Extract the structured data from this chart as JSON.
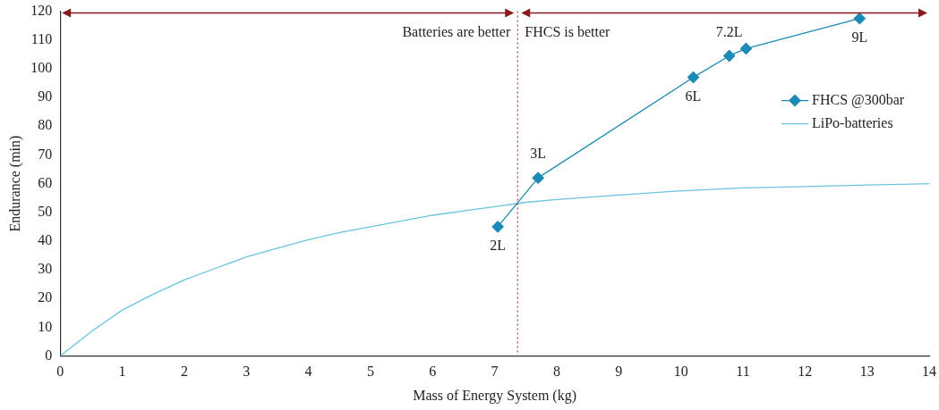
{
  "chart_data": {
    "type": "line",
    "xlabel": "Mass of Energy System (kg)",
    "ylabel": "Endurance (min)",
    "xlim": [
      0,
      14
    ],
    "xticks": [
      0,
      1,
      2,
      3,
      4,
      5,
      6,
      7,
      8,
      9,
      10,
      11,
      12,
      13,
      14
    ],
    "ylim": [
      0,
      120
    ],
    "yticks": [
      0,
      10,
      20,
      30,
      40,
      50,
      60,
      70,
      80,
      90,
      100,
      110,
      120
    ],
    "grid": false,
    "legend": "right",
    "series": [
      {
        "name": "FHCS @300bar",
        "color": "#1b8bb5",
        "marker": "diamond",
        "x": [
          7.05,
          7.7,
          10.2,
          10.78,
          11.05,
          12.88
        ],
        "values": [
          45,
          62,
          97,
          104.5,
          107,
          117.5
        ]
      },
      {
        "name": "LiPo-batteries",
        "color": "#6cc4dd",
        "marker": "none",
        "x": [
          0,
          0.5,
          1,
          1.5,
          2,
          2.5,
          3,
          3.5,
          4,
          4.5,
          5,
          5.5,
          6,
          6.5,
          7,
          7.5,
          8,
          9,
          10,
          11,
          12,
          13,
          14
        ],
        "values": [
          0,
          8.5,
          16,
          21.5,
          26.5,
          30.5,
          34.5,
          37.5,
          40.5,
          43,
          45,
          47,
          49,
          50.5,
          52,
          53.5,
          54.5,
          56,
          57.5,
          58.5,
          59,
          59.5,
          60
        ]
      }
    ],
    "ref_lines": [
      {
        "axis": "x",
        "value": 7.37,
        "color": "#c0393b",
        "line_style": "dotted"
      }
    ],
    "annotations": [
      "Batteries are better",
      "FHCS is better",
      {
        "text": "2L",
        "x": 7.05,
        "y": 45
      },
      {
        "text": "3L",
        "x": 7.7,
        "y": 62
      },
      {
        "text": "6L",
        "x": 10.2,
        "y": 97
      },
      {
        "text": "7.2L",
        "x": 10.78,
        "y": 104.5
      },
      {
        "text": "9L",
        "x": 12.88,
        "y": 117.5
      }
    ]
  }
}
